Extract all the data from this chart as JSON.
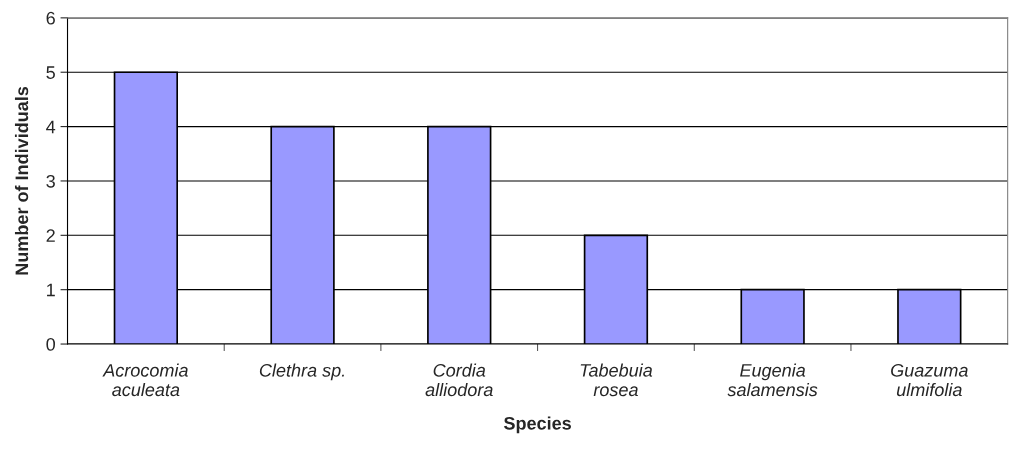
{
  "chart_data": {
    "type": "bar",
    "xlabel": "Species",
    "ylabel": "Number of Individuals",
    "categories": [
      "Acrocomia\naculeata",
      "Clethra sp.",
      "Cordia\nalliodora",
      "Tabebuia\nrosea",
      "Eugenia\nsalamensis",
      "Guazuma\nulmifolia"
    ],
    "values": [
      5,
      4,
      4,
      2,
      1,
      1
    ],
    "color": "#9999ff",
    "ylim": [
      0,
      6
    ],
    "yticks": [
      0,
      1,
      2,
      3,
      4,
      5,
      6
    ],
    "grid": "y",
    "legend": false
  }
}
